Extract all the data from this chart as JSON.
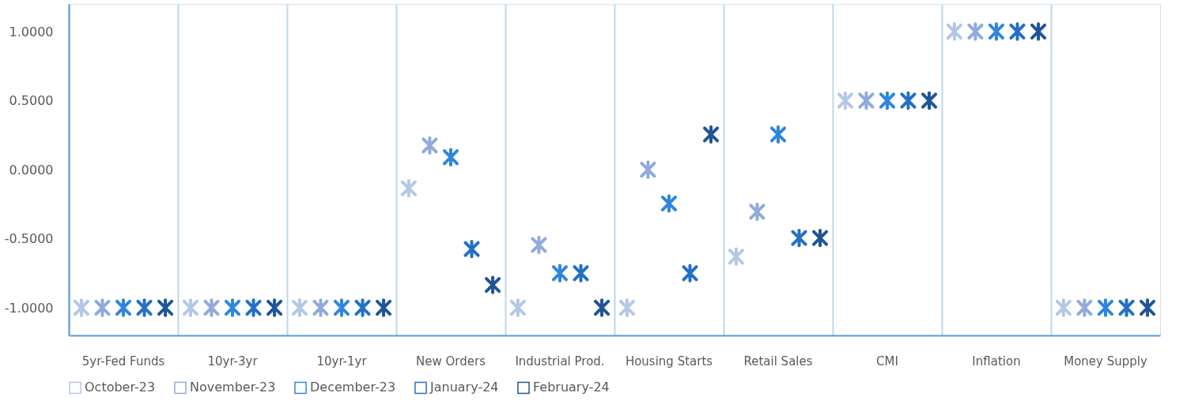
{
  "chart_data": {
    "type": "scatter",
    "categories": [
      "5yr-Fed Funds",
      "10yr-3yr",
      "10yr-1yr",
      "New Orders",
      "Industrial Prod.",
      "Housing Starts",
      "Retail Sales",
      "CMI",
      "Inflation",
      "Money Supply"
    ],
    "series": [
      {
        "name": "October-23",
        "color": "#b4c7e7",
        "values": [
          -1,
          -1,
          -1,
          -0.135,
          -1,
          -1,
          -0.63,
          0.5,
          1,
          -1
        ]
      },
      {
        "name": "November-23",
        "color": "#8faadc",
        "values": [
          -1,
          -1,
          -1,
          0.175,
          -0.545,
          0.0,
          -0.305,
          0.5,
          1,
          -1
        ]
      },
      {
        "name": "December-23",
        "color": "#2e86de",
        "values": [
          -1,
          -1,
          -1,
          0.09,
          -0.75,
          -0.245,
          0.255,
          0.5,
          1,
          -1
        ]
      },
      {
        "name": "January-24",
        "color": "#2270c6",
        "values": [
          -1,
          -1,
          -1,
          -0.575,
          -0.75,
          -0.75,
          -0.495,
          0.5,
          1,
          -1
        ]
      },
      {
        "name": "February-24",
        "color": "#1f5597",
        "values": [
          -1,
          -1,
          -1,
          -0.835,
          -1,
          0.255,
          -0.495,
          0.5,
          1,
          -1
        ]
      }
    ],
    "ylim": [
      -1.2,
      1.2
    ],
    "yticks": [
      {
        "value": -1,
        "label": "-1.0000"
      },
      {
        "value": -0.5,
        "label": "-0.5000"
      },
      {
        "value": 0,
        "label": "0.0000"
      },
      {
        "value": 0.5,
        "label": "0.5000"
      },
      {
        "value": 1,
        "label": "1.0000"
      }
    ],
    "grid": "x",
    "legend": "bottom",
    "marker": "cross"
  }
}
